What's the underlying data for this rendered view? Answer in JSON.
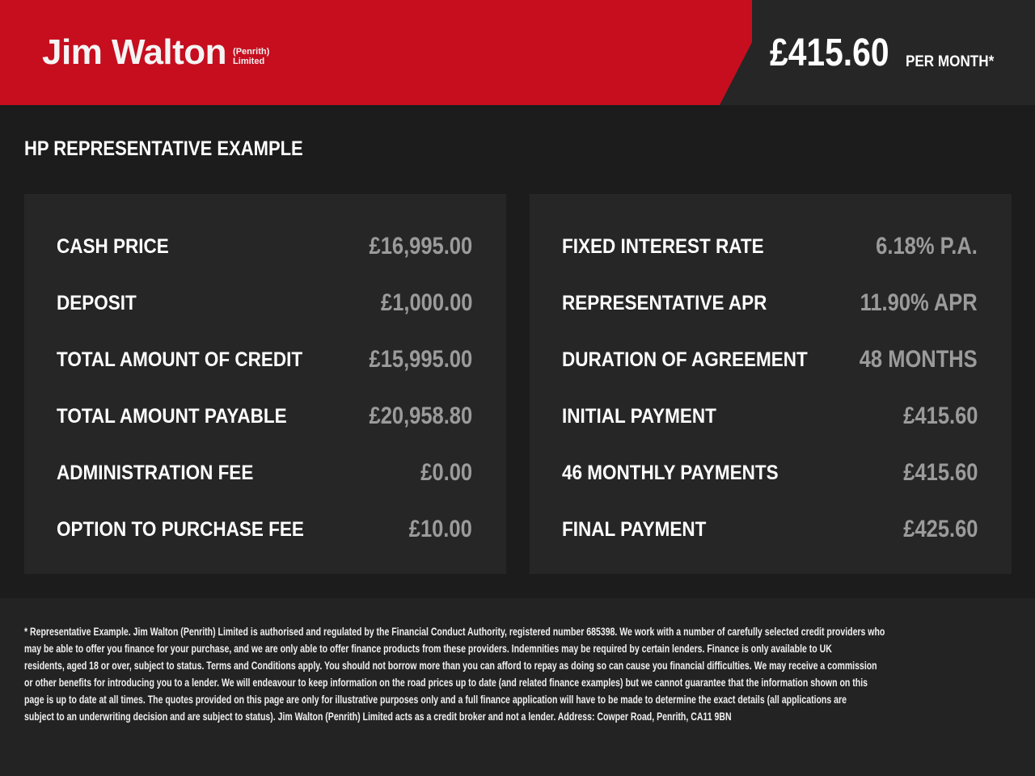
{
  "header": {
    "logo_main": "Jim Walton",
    "logo_sub_1": "(Penrith)",
    "logo_sub_2": "Limited",
    "monthly_price": "£415.60",
    "per_month": "PER MONTH*",
    "brand_color": "#c60e1f"
  },
  "title": "HP REPRESENTATIVE EXAMPLE",
  "left_panel": [
    {
      "label": "CASH PRICE",
      "value": "£16,995.00"
    },
    {
      "label": "DEPOSIT",
      "value": "£1,000.00"
    },
    {
      "label": "TOTAL AMOUNT OF CREDIT",
      "value": "£15,995.00"
    },
    {
      "label": "TOTAL AMOUNT PAYABLE",
      "value": "£20,958.80"
    },
    {
      "label": "ADMINISTRATION FEE",
      "value": "£0.00"
    },
    {
      "label": "OPTION TO PURCHASE FEE",
      "value": "£10.00"
    }
  ],
  "right_panel": [
    {
      "label": "FIXED INTEREST RATE",
      "value": "6.18% P.A."
    },
    {
      "label": "REPRESENTATIVE APR",
      "value": "11.90% APR"
    },
    {
      "label": "DURATION OF AGREEMENT",
      "value": "48 MONTHS"
    },
    {
      "label": "INITIAL PAYMENT",
      "value": "£415.60"
    },
    {
      "label": "46 MONTHLY PAYMENTS",
      "value": "£415.60"
    },
    {
      "label": "FINAL PAYMENT",
      "value": "£425.60"
    }
  ],
  "disclaimer": [
    "* Representative Example. Jim Walton (Penrith) Limited is authorised and regulated by the Financial Conduct Authority, registered number 685398. We work with a number of carefully selected credit providers who",
    "may be able to offer you finance for your purchase, and we are only able to offer finance products from these providers. Indemnities may be required by certain lenders. Finance is only available to UK",
    "residents, aged 18 or over, subject to status. Terms and Conditions apply. You should not borrow more than you can afford to repay as doing so can cause you financial difficulties. We may receive a commission",
    "or other benefits for introducing you to a lender. We will endeavour to keep information on the road prices up to date (and related finance examples) but we cannot guarantee that the information shown on this",
    "page is up to date at all times. The quotes provided on this page are only for illustrative purposes only and a full finance application will have to be made to determine the exact details (all applications are",
    "subject to an underwriting decision and are subject to status). Jim Walton (Penrith) Limited acts as a credit broker and not a lender. Address: Cowper Road, Penrith, CA11 9BN"
  ]
}
